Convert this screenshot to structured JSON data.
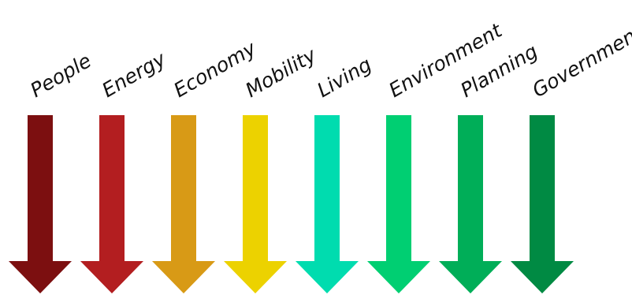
{
  "diagram": {
    "arrows": [
      {
        "label": "People",
        "color": "#7c0f10",
        "direction": "down"
      },
      {
        "label": "Energy",
        "color": "#b31e20",
        "direction": "down"
      },
      {
        "label": "Economy",
        "color": "#d89a16",
        "direction": "down"
      },
      {
        "label": "Mobility",
        "color": "#ecd200",
        "direction": "down"
      },
      {
        "label": "Living",
        "color": "#00dcaf",
        "direction": "down"
      },
      {
        "label": "Environment",
        "color": "#00cf72",
        "direction": "down"
      },
      {
        "label": "Planning",
        "color": "#00ae58",
        "direction": "down"
      },
      {
        "label": "Government",
        "color": "#008a43",
        "direction": "down"
      }
    ]
  }
}
